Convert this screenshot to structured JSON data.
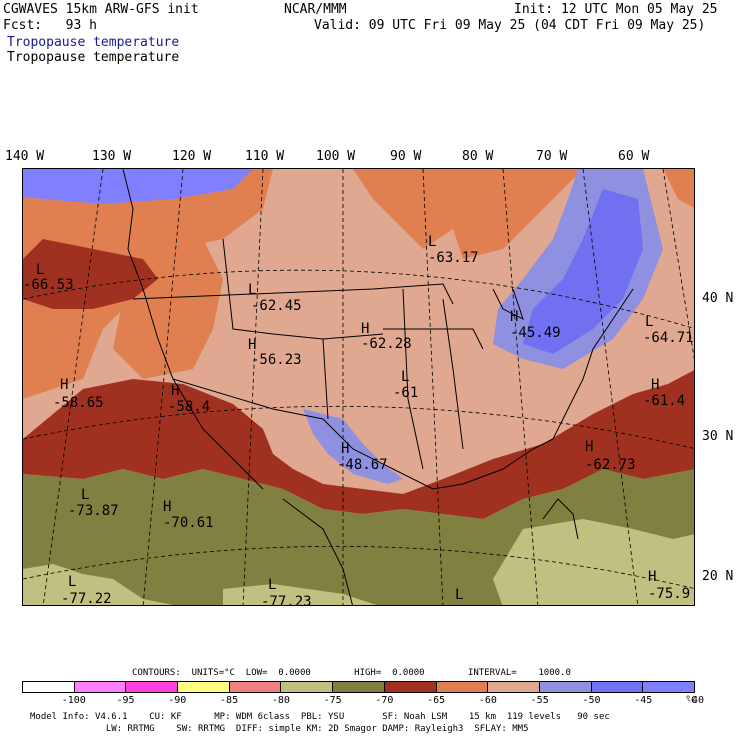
{
  "header": {
    "model": "CGWAVES 15km ARW-GFS init",
    "org": "NCAR/MMM",
    "init": "Init: 12 UTC Mon 05 May 25",
    "fcst": "Fcst:   93 h",
    "valid": "Valid: 09 UTC Fri 09 May 25 (04 CDT Fri 09 May 25)",
    "field_title_blue": "Tropopause temperature",
    "field_title_black": "Tropopause temperature"
  },
  "axes": {
    "lon_labels": [
      "140 W",
      "130 W",
      "120 W",
      "110 W",
      "100 W",
      "90 W",
      "80 W",
      "70 W",
      "60 W"
    ],
    "lat_labels": [
      "40 N",
      "30 N",
      "20 N"
    ]
  },
  "centers": [
    {
      "type": "L",
      "value": "-66.53"
    },
    {
      "type": "L",
      "value": "-62.45"
    },
    {
      "type": "H",
      "value": "-56.23"
    },
    {
      "type": "L",
      "value": "-63.17"
    },
    {
      "type": "H",
      "value": "-62.28"
    },
    {
      "type": "H",
      "value": "-45.49"
    },
    {
      "type": "L",
      "value": "-64.71"
    },
    {
      "type": "H",
      "value": "-58.65"
    },
    {
      "type": "H",
      "value": "-58.4"
    },
    {
      "type": "L",
      "value": "-61"
    },
    {
      "type": "H",
      "value": "-61.4"
    },
    {
      "type": "H",
      "value": "-48.67"
    },
    {
      "type": "H",
      "value": "-62.73"
    },
    {
      "type": "L",
      "value": "-73.87"
    },
    {
      "type": "H",
      "value": "-70.61"
    },
    {
      "type": "L",
      "value": "-77.22"
    },
    {
      "type": "L",
      "value": "-77.23"
    },
    {
      "type": "L",
      "value": ""
    },
    {
      "type": "H",
      "value": "-75.9"
    }
  ],
  "contour_line": "CONTOURS:  UNITS=°C  LOW=  0.0000        HIGH=  0.0000        INTERVAL=    1000.0",
  "colorbar": {
    "colors": [
      "#ffffff",
      "#ff80ff",
      "#ff40e0",
      "#ffff80",
      "#f08080",
      "#c0c080",
      "#808040",
      "#a03020",
      "#e08050",
      "#e0a890",
      "#9090e0",
      "#7070f0",
      "#8080ff"
    ],
    "ticks": [
      "-100",
      "-95",
      "-90",
      "-85",
      "-80",
      "-75",
      "-70",
      "-65",
      "-60",
      "-55",
      "-50",
      "-45",
      "-40",
      "°C"
    ]
  },
  "footer": {
    "line1": "Model Info: V4.6.1    CU: KF      MP: WDM 6class  PBL: YSU       SF: Noah LSM    15 km  119 levels   90 sec",
    "line2": "              LW: RRTMG    SW: RRTMG  DIFF: simple KM: 2D Smagor DAMP: Rayleigh3  SFLAY: MM5"
  }
}
